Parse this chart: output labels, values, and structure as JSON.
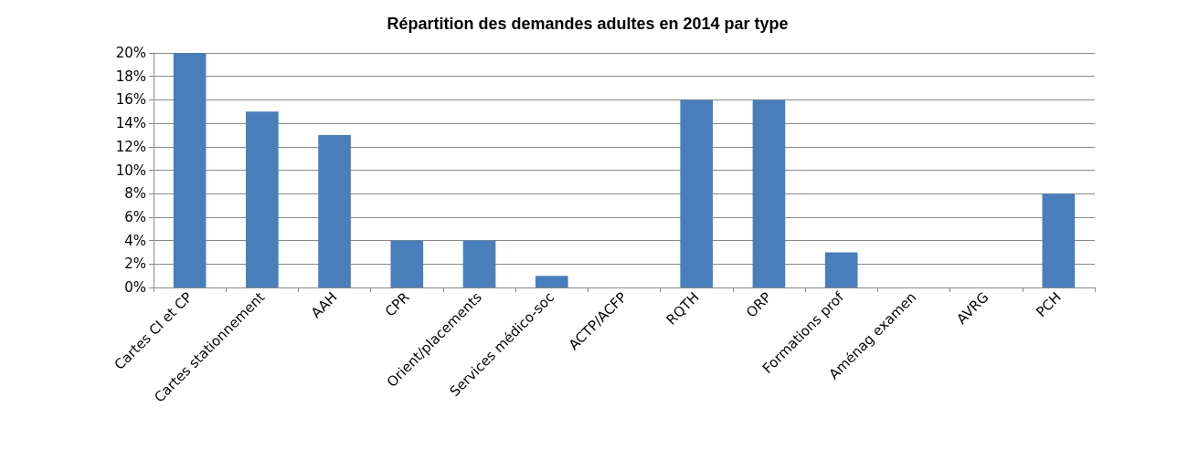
{
  "chart_data": {
    "type": "bar",
    "title": "Répartition des demandes adultes en 2014 par type",
    "categories": [
      "Cartes CI et CP",
      "Cartes stationnement",
      "AAH",
      "CPR",
      "Orient/placements",
      "Services médico-soc",
      "ACTP/ACFP",
      "RQTH",
      "ORP",
      "Formations prof",
      "Aménag examen",
      "AVRG",
      "PCH"
    ],
    "values": [
      20,
      15,
      13,
      4,
      4,
      1,
      0,
      16,
      16,
      3,
      0,
      0,
      8
    ],
    "color": "#4a7ebb",
    "ylim": [
      0,
      20
    ],
    "yticks": [
      {
        "value": 0,
        "label": "0%"
      },
      {
        "value": 2,
        "label": "2%"
      },
      {
        "value": 4,
        "label": "4%"
      },
      {
        "value": 6,
        "label": "6%"
      },
      {
        "value": 8,
        "label": "8%"
      },
      {
        "value": 10,
        "label": "10%"
      },
      {
        "value": 12,
        "label": "12%"
      },
      {
        "value": 14,
        "label": "14%"
      },
      {
        "value": 16,
        "label": "16%"
      },
      {
        "value": 18,
        "label": "18%"
      },
      {
        "value": 20,
        "label": "20%"
      }
    ],
    "grid": "y"
  }
}
